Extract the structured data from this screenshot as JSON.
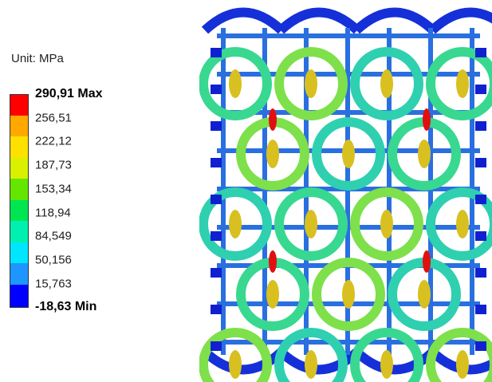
{
  "legend": {
    "unit": "Unit: MPa",
    "labels": [
      "290,91 Max",
      "256,51",
      "222,12",
      "187,73",
      "153,34",
      "118,94",
      "84,549",
      "50,156",
      "15,763",
      "-18,63 Min"
    ]
  }
}
